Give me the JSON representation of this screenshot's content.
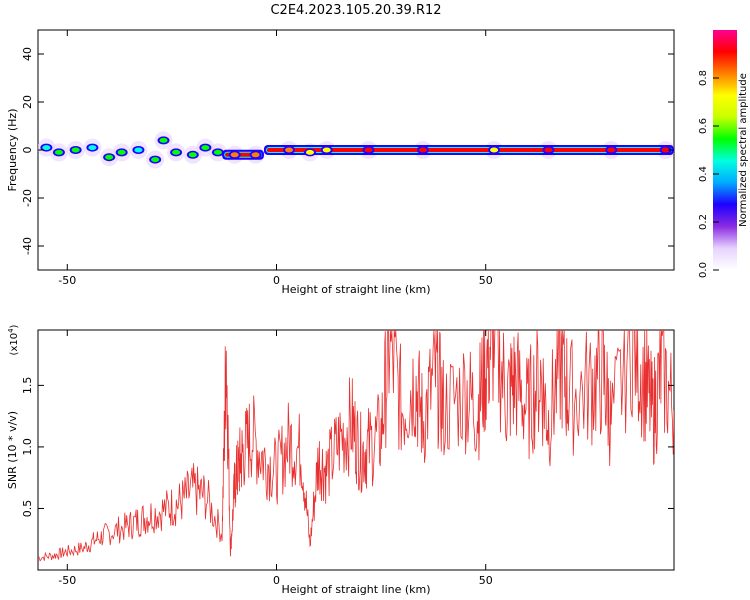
{
  "title": "C2E4.2023.105.20.39.R12",
  "chart_data": [
    {
      "type": "heatmap",
      "xlabel": "Height of straight line (km)",
      "ylabel": "Frequency (Hz)",
      "xlim": [
        -57,
        95
      ],
      "ylim": [
        -50,
        50
      ],
      "x_ticks": [
        -50,
        0,
        50
      ],
      "y_ticks": [
        -40,
        -20,
        0,
        20,
        40
      ],
      "colorbar": {
        "label": "Normalized spectral amplitude",
        "range": [
          0.0,
          1.0
        ],
        "ticks": [
          "0.0",
          "0.2",
          "0.4",
          "0.6",
          "0.8"
        ],
        "colors": [
          "#ffffff",
          "#e6d2ff",
          "#8a2be2",
          "#1e00ff",
          "#00aaff",
          "#00ffe0",
          "#00ff00",
          "#c8ff00",
          "#ffff00",
          "#ff8000",
          "#ff0000",
          "#ff0090"
        ]
      },
      "blobs": [
        {
          "x": -55,
          "y": 1,
          "v": 0.45
        },
        {
          "x": -52,
          "y": -1,
          "v": 0.55
        },
        {
          "x": -48,
          "y": 0,
          "v": 0.5
        },
        {
          "x": -44,
          "y": 1,
          "v": 0.45
        },
        {
          "x": -40,
          "y": -3,
          "v": 0.5
        },
        {
          "x": -37,
          "y": -1,
          "v": 0.5
        },
        {
          "x": -33,
          "y": 0,
          "v": 0.45
        },
        {
          "x": -29,
          "y": -4,
          "v": 0.5
        },
        {
          "x": -27,
          "y": 4,
          "v": 0.5
        },
        {
          "x": -24,
          "y": -1,
          "v": 0.5
        },
        {
          "x": -20,
          "y": -2,
          "v": 0.5
        },
        {
          "x": -17,
          "y": 1,
          "v": 0.55
        },
        {
          "x": -14,
          "y": -1,
          "v": 0.5
        },
        {
          "x": -10,
          "y": -2,
          "v": 0.85
        },
        {
          "x": -5,
          "y": -2,
          "v": 0.85
        },
        {
          "x": 3,
          "y": 0,
          "v": 0.8
        },
        {
          "x": 8,
          "y": -1,
          "v": 0.7
        },
        {
          "x": 12,
          "y": 0,
          "v": 0.7
        },
        {
          "x": 22,
          "y": 0,
          "v": 0.9
        },
        {
          "x": 35,
          "y": 0,
          "v": 0.9
        },
        {
          "x": 52,
          "y": 0,
          "v": 0.75
        },
        {
          "x": 65,
          "y": 0,
          "v": 0.9
        },
        {
          "x": 80,
          "y": 0,
          "v": 0.9
        },
        {
          "x": 93,
          "y": 0,
          "v": 0.9
        }
      ],
      "ridge": [
        {
          "x0": -13,
          "x1": -3,
          "y": -2,
          "v": 0.9
        },
        {
          "x0": -3,
          "x1": 95,
          "y": 0,
          "v": 0.95
        }
      ]
    },
    {
      "type": "line",
      "xlabel": "Height of straight line (km)",
      "ylabel": "SNR (10 * v/v)",
      "y_scale_label": "(x10",
      "y_scale_exponent": "4",
      "xlim": [
        -57,
        95
      ],
      "ylim": [
        0,
        19500
      ],
      "x_ticks": [
        -50,
        0,
        50
      ],
      "y_tick_labels": [
        "0.5",
        "1.0",
        "1.5"
      ],
      "y_tick_values": [
        5000,
        10000,
        15000
      ],
      "line_color": "#e83030",
      "series": [
        {
          "x": [
            -57,
            -53,
            -50,
            -46,
            -43,
            -40,
            -36,
            -33,
            -30,
            -26,
            -23,
            -20,
            -17,
            -13,
            -12,
            -11,
            -10,
            -9,
            -8,
            -6,
            -3,
            0,
            3,
            6,
            8,
            10,
            12,
            15,
            18,
            20,
            22,
            25,
            27,
            30,
            33,
            35,
            38,
            40,
            45,
            48,
            50,
            52,
            55,
            57,
            60,
            63,
            65,
            68,
            70,
            75,
            78,
            80,
            85,
            88,
            90,
            92,
            95
          ],
          "y": [
            1000,
            1200,
            1500,
            1800,
            2500,
            3000,
            3500,
            4000,
            4500,
            5000,
            5500,
            6500,
            6000,
            3000,
            18000,
            1500,
            7000,
            8500,
            9500,
            11000,
            9000,
            8000,
            10500,
            9500,
            2000,
            9000,
            8000,
            10500,
            12000,
            9500,
            10000,
            11000,
            18500,
            13000,
            15500,
            12000,
            16000,
            13000,
            14500,
            13000,
            16500,
            19500,
            14000,
            15500,
            13000,
            16000,
            12000,
            17000,
            14000,
            15000,
            16000,
            12000,
            19000,
            15500,
            12500,
            16500,
            13000
          ]
        }
      ]
    }
  ]
}
